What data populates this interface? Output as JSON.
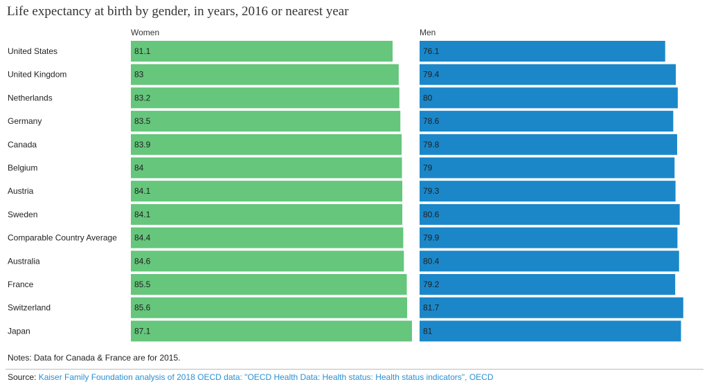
{
  "chart_data": {
    "type": "bar",
    "title": "Life expectancy at birth by gender, in years, 2016 or nearest year",
    "categories": [
      "United States",
      "United Kingdom",
      "Netherlands",
      "Germany",
      "Canada",
      "Belgium",
      "Austria",
      "Sweden",
      "Comparable Country Average",
      "Australia",
      "France",
      "Switzerland",
      "Japan"
    ],
    "series": [
      {
        "name": "Women",
        "color": "#65c67c",
        "values": [
          81.1,
          83,
          83.2,
          83.5,
          83.9,
          84,
          84.1,
          84.1,
          84.4,
          84.6,
          85.5,
          85.6,
          87.1
        ]
      },
      {
        "name": "Men",
        "color": "#1b87c9",
        "values": [
          76.1,
          79.4,
          80,
          78.6,
          79.8,
          79,
          79.3,
          80.6,
          79.9,
          80.4,
          79.2,
          81.7,
          81
        ]
      }
    ],
    "orientation": "horizontal",
    "layout": "small-multiples"
  },
  "notes": "Notes: Data for Canada & France are for 2015.",
  "source": {
    "label": "Source:",
    "text": "Kaiser Family Foundation analysis of 2018 OECD data: \"OECD Health Data: Health status: Health status indicators\", OECD"
  }
}
